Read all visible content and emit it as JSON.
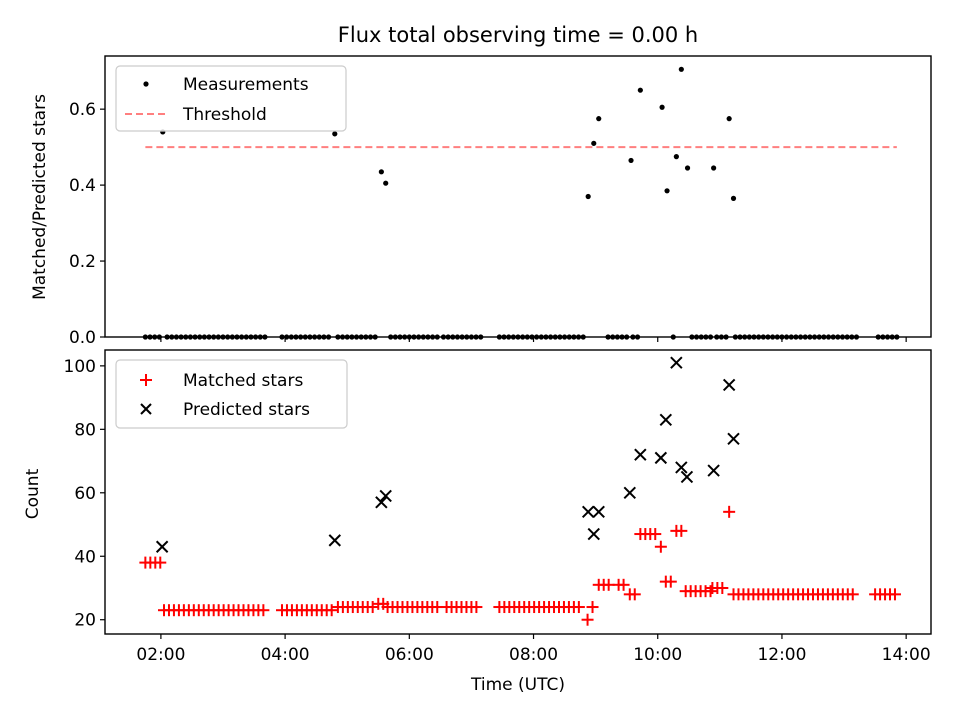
{
  "chart_data": [
    {
      "type": "scatter",
      "title": "Flux total observing time = 0.00 h",
      "xlabel": "",
      "ylabel": "Matched/Predicted stars",
      "xlim": [
        1.1,
        14.4
      ],
      "ylim": [
        0.0,
        0.74
      ],
      "yticks": [
        0.0,
        0.2,
        0.4,
        0.6
      ],
      "ytick_labels": [
        "0.0",
        "0.2",
        "0.4",
        "0.6"
      ],
      "legend": {
        "position": "top-left",
        "entries": [
          "Measurements",
          "Threshold"
        ]
      },
      "threshold": {
        "value": 0.5,
        "x_start": 1.75,
        "x_end": 13.85,
        "color": "#ff7f7f"
      },
      "measurements_nonzero": [
        {
          "x": 2.03,
          "y": 0.54
        },
        {
          "x": 4.8,
          "y": 0.535
        },
        {
          "x": 5.55,
          "y": 0.435
        },
        {
          "x": 5.62,
          "y": 0.405
        },
        {
          "x": 8.88,
          "y": 0.37
        },
        {
          "x": 8.97,
          "y": 0.51
        },
        {
          "x": 9.05,
          "y": 0.575
        },
        {
          "x": 9.57,
          "y": 0.465
        },
        {
          "x": 9.72,
          "y": 0.65
        },
        {
          "x": 10.07,
          "y": 0.605
        },
        {
          "x": 10.15,
          "y": 0.385
        },
        {
          "x": 10.3,
          "y": 0.475
        },
        {
          "x": 10.38,
          "y": 0.705
        },
        {
          "x": 10.48,
          "y": 0.445
        },
        {
          "x": 10.9,
          "y": 0.445
        },
        {
          "x": 11.15,
          "y": 0.575
        },
        {
          "x": 11.22,
          "y": 0.365
        }
      ],
      "measurements_zero_segments": [
        [
          1.75,
          2.0
        ],
        [
          2.1,
          3.7
        ],
        [
          3.95,
          4.75
        ],
        [
          4.85,
          5.5
        ],
        [
          5.7,
          6.5
        ],
        [
          6.55,
          7.2
        ],
        [
          7.45,
          8.85
        ],
        [
          9.2,
          9.5
        ],
        [
          9.6,
          9.7
        ],
        [
          10.25,
          10.28
        ],
        [
          10.55,
          10.85
        ],
        [
          10.95,
          11.1
        ],
        [
          11.25,
          13.2
        ],
        [
          13.55,
          13.85
        ]
      ]
    },
    {
      "type": "scatter",
      "title": "",
      "xlabel": "Time (UTC)",
      "ylabel": "Count",
      "xlim": [
        1.1,
        14.4
      ],
      "ylim": [
        15.5,
        105
      ],
      "yticks": [
        20,
        40,
        60,
        80,
        100
      ],
      "ytick_labels": [
        "20",
        "40",
        "60",
        "80",
        "100"
      ],
      "xticks": [
        2,
        4,
        6,
        8,
        10,
        12,
        14
      ],
      "xtick_labels": [
        "02:00",
        "04:00",
        "06:00",
        "08:00",
        "10:00",
        "12:00",
        "14:00"
      ],
      "legend": {
        "position": "top-left",
        "entries": [
          "Matched stars",
          "Predicted stars"
        ]
      },
      "matched_stars": [
        {
          "x": 1.75,
          "y": 38
        },
        {
          "x": 1.83,
          "y": 38
        },
        {
          "x": 1.91,
          "y": 38
        },
        {
          "x": 1.99,
          "y": 38
        },
        {
          "x": 8.87,
          "y": 20
        },
        {
          "x": 9.05,
          "y": 31
        },
        {
          "x": 9.13,
          "y": 31
        },
        {
          "x": 9.21,
          "y": 31
        },
        {
          "x": 9.37,
          "y": 31
        },
        {
          "x": 9.45,
          "y": 31
        },
        {
          "x": 9.55,
          "y": 28
        },
        {
          "x": 9.63,
          "y": 28
        },
        {
          "x": 9.72,
          "y": 47
        },
        {
          "x": 9.8,
          "y": 47
        },
        {
          "x": 9.88,
          "y": 47
        },
        {
          "x": 9.96,
          "y": 47
        },
        {
          "x": 10.05,
          "y": 43
        },
        {
          "x": 10.13,
          "y": 32
        },
        {
          "x": 10.21,
          "y": 32
        },
        {
          "x": 10.3,
          "y": 48
        },
        {
          "x": 10.38,
          "y": 48
        },
        {
          "x": 11.15,
          "y": 54
        }
      ],
      "matched_stars_segments": [
        {
          "x_start": 2.05,
          "x_end": 3.65,
          "y": 23
        },
        {
          "x_start": 3.95,
          "x_end": 4.75,
          "y": 23
        },
        {
          "x_start": 4.85,
          "y": 24,
          "x_end": 5.45
        },
        {
          "x_start": 5.5,
          "x_end": 5.6,
          "y": 25
        },
        {
          "x_start": 5.65,
          "x_end": 6.5,
          "y": 24
        },
        {
          "x_start": 6.6,
          "x_end": 7.15,
          "y": 24
        },
        {
          "x_start": 7.45,
          "x_end": 8.8,
          "y": 24
        },
        {
          "x_start": 8.95,
          "x_end": 9.0,
          "y": 24
        },
        {
          "x_start": 10.45,
          "x_end": 10.85,
          "y": 29
        },
        {
          "x_start": 10.88,
          "x_end": 11.1,
          "y": 30
        },
        {
          "x_start": 11.22,
          "x_end": 13.2,
          "y": 28
        },
        {
          "x_start": 13.5,
          "x_end": 13.85,
          "y": 28
        }
      ],
      "predicted_stars": [
        {
          "x": 2.02,
          "y": 43
        },
        {
          "x": 4.8,
          "y": 45
        },
        {
          "x": 5.55,
          "y": 57
        },
        {
          "x": 5.62,
          "y": 59
        },
        {
          "x": 8.88,
          "y": 54
        },
        {
          "x": 8.97,
          "y": 47
        },
        {
          "x": 9.05,
          "y": 54
        },
        {
          "x": 9.55,
          "y": 60
        },
        {
          "x": 9.72,
          "y": 72
        },
        {
          "x": 10.05,
          "y": 71
        },
        {
          "x": 10.13,
          "y": 83
        },
        {
          "x": 10.3,
          "y": 101
        },
        {
          "x": 10.38,
          "y": 68
        },
        {
          "x": 10.47,
          "y": 65
        },
        {
          "x": 10.9,
          "y": 67
        },
        {
          "x": 11.15,
          "y": 94
        },
        {
          "x": 11.22,
          "y": 77
        }
      ]
    }
  ]
}
